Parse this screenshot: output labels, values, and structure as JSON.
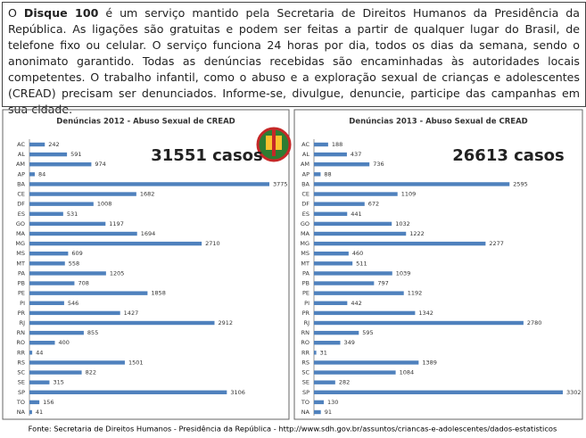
{
  "intro": {
    "prefix": "O ",
    "bold": "Disque 100",
    "rest": " é um serviço mantido pela Secretaria de Direitos Humanos da Presidência da República. As ligações são gratuitas e podem ser feitas a partir de qualquer lugar do Brasil, de telefone fixo ou celular. O serviço funciona 24 horas por dia, todos os dias da semana, sendo o anonimato garantido. Todas as denúncias recebidas são encaminhadas às autoridades locais competentes. O trabalho infantil, como o abuso e a exploração sexual de crianças e adolescentes (CREAD) precisam ser denunciados. Informe-se, divulgue, denuncie, participe das campanhas em sua cidade."
  },
  "source": "Fonte: Secretaria de Direitos Humanos -  Presidência da República - http://www.sdh.gov.br/assuntos/criancas-e-adolescentes/dados-estatisticos",
  "chart_data": [
    {
      "type": "hbar",
      "title": "Denúncias 2012  - Abuso Sexual de CREAD",
      "annotation": "31551 casos",
      "color": "#4f81bd",
      "categories": [
        "AC",
        "AL",
        "AM",
        "AP",
        "BA",
        "CE",
        "DF",
        "ES",
        "GO",
        "MA",
        "MG",
        "MS",
        "MT",
        "PA",
        "PB",
        "PE",
        "PI",
        "PR",
        "RJ",
        "RN",
        "RO",
        "RR",
        "RS",
        "SC",
        "SE",
        "SP",
        "TO",
        "NA"
      ],
      "values": [
        242,
        591,
        974,
        84,
        3775,
        1682,
        1008,
        531,
        1197,
        1694,
        2710,
        609,
        558,
        1205,
        708,
        1858,
        546,
        1427,
        2912,
        855,
        400,
        44,
        1501,
        822,
        315,
        3106,
        156,
        41
      ]
    },
    {
      "type": "hbar",
      "title": "Denúncias 2013  - Abuso Sexual de CREAD",
      "annotation": "26613 casos",
      "color": "#4f81bd",
      "categories": [
        "AC",
        "AL",
        "AM",
        "AP",
        "BA",
        "CE",
        "DF",
        "ES",
        "GO",
        "MA",
        "MG",
        "MS",
        "MT",
        "PA",
        "PB",
        "PE",
        "PI",
        "PR",
        "RJ",
        "RN",
        "RO",
        "RR",
        "RS",
        "SC",
        "SE",
        "SP",
        "TO",
        "NA"
      ],
      "values": [
        188,
        437,
        736,
        88,
        2595,
        1109,
        672,
        441,
        1032,
        1222,
        2277,
        460,
        511,
        1039,
        797,
        1192,
        442,
        1342,
        2780,
        595,
        349,
        31,
        1389,
        1084,
        282,
        3302,
        130,
        91
      ]
    }
  ]
}
